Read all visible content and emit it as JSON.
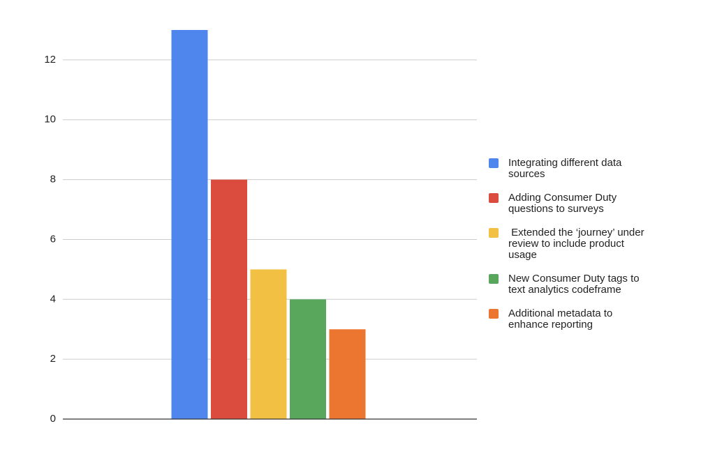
{
  "chart_data": {
    "type": "bar",
    "categories": [
      null
    ],
    "series": [
      {
        "name": "Integrating different data sources",
        "color": "#4f86ee",
        "values": [
          13
        ]
      },
      {
        "name": "Adding Consumer Duty questions to surveys",
        "color": "#db4b3e",
        "values": [
          8
        ]
      },
      {
        "name": " Extended the ‘journey’ under review to include product usage",
        "color": "#f2c043",
        "values": [
          5
        ]
      },
      {
        "name": "New Consumer Duty tags to text analytics codeframe",
        "color": "#58a75c",
        "values": [
          4
        ]
      },
      {
        "name": "Additional metadata to enhance reporting",
        "color": "#ec7530",
        "values": [
          3
        ]
      }
    ],
    "ylim": [
      0,
      13
    ],
    "yticks": [
      0,
      2,
      4,
      6,
      8,
      10,
      12
    ],
    "grid": true,
    "legend": "right"
  }
}
